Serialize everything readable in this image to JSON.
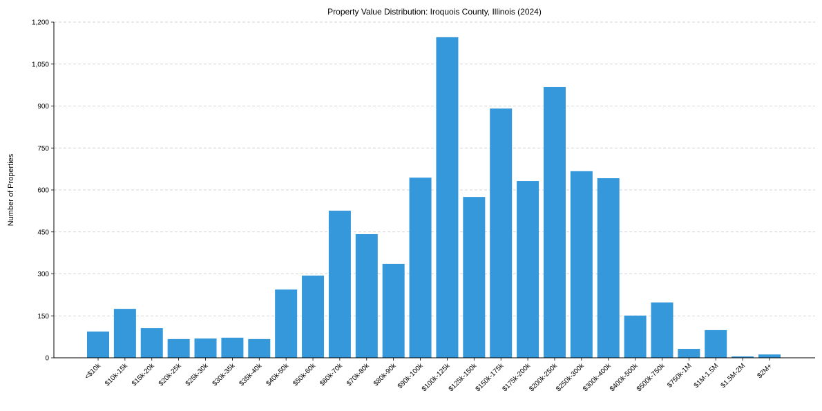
{
  "chart_data": {
    "type": "bar",
    "title": "Property Value Distribution: Iroquois County, Illinois (2024)",
    "xlabel": "",
    "ylabel": "Number of Properties",
    "ylim": [
      0,
      1200
    ],
    "yticks": [
      0,
      150,
      300,
      450,
      600,
      750,
      900,
      1050,
      1200
    ],
    "ytick_labels": [
      "0",
      "150",
      "300",
      "450",
      "600",
      "750",
      "900",
      "1,050",
      "1,200"
    ],
    "grid": "y-dashed",
    "bar_color": "#3498db",
    "categories": [
      "<$10k",
      "$10k-15k",
      "$15k-20k",
      "$20k-25k",
      "$25k-30k",
      "$30k-35k",
      "$35k-40k",
      "$40k-50k",
      "$50k-60k",
      "$60k-70k",
      "$70k-80k",
      "$80k-90k",
      "$90k-100k",
      "$100k-125k",
      "$125k-150k",
      "$150k-175k",
      "$175k-200k",
      "$200k-250k",
      "$250k-300k",
      "$300k-400k",
      "$400k-500k",
      "$500k-750k",
      "$750k-1M",
      "$1M-1.5M",
      "$1.5M-2M",
      "$2M+"
    ],
    "values": [
      94,
      175,
      106,
      67,
      69,
      72,
      67,
      244,
      294,
      526,
      442,
      336,
      644,
      1146,
      575,
      891,
      632,
      968,
      667,
      642,
      151,
      198,
      32,
      99,
      5,
      12
    ]
  }
}
